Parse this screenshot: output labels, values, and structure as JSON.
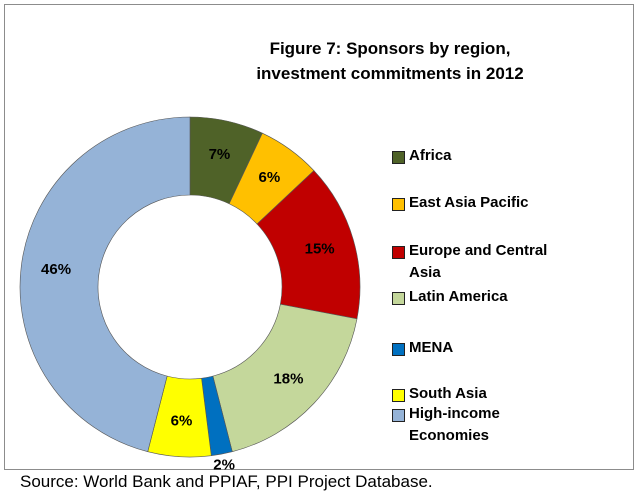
{
  "chart_data": {
    "type": "donut",
    "title": "Figure 7: Sponsors by region, investment commitments in 2012",
    "categories": [
      "Africa",
      "East Asia Pacific",
      "Europe and Central Asia",
      "Latin America",
      "MENA",
      "South Asia",
      "High-income Economies"
    ],
    "values": [
      7,
      6,
      15,
      18,
      2,
      6,
      46
    ],
    "value_labels": [
      "7%",
      "6%",
      "15%",
      "18%",
      "2%",
      "6%",
      "46%"
    ],
    "colors": [
      "#4f6228",
      "#ffc000",
      "#c00000",
      "#c4d79b",
      "#0070c0",
      "#ffff00",
      "#95b3d7"
    ],
    "legend": "right",
    "source": "Source:  World Bank and PPIAF, PPI Project Database."
  }
}
